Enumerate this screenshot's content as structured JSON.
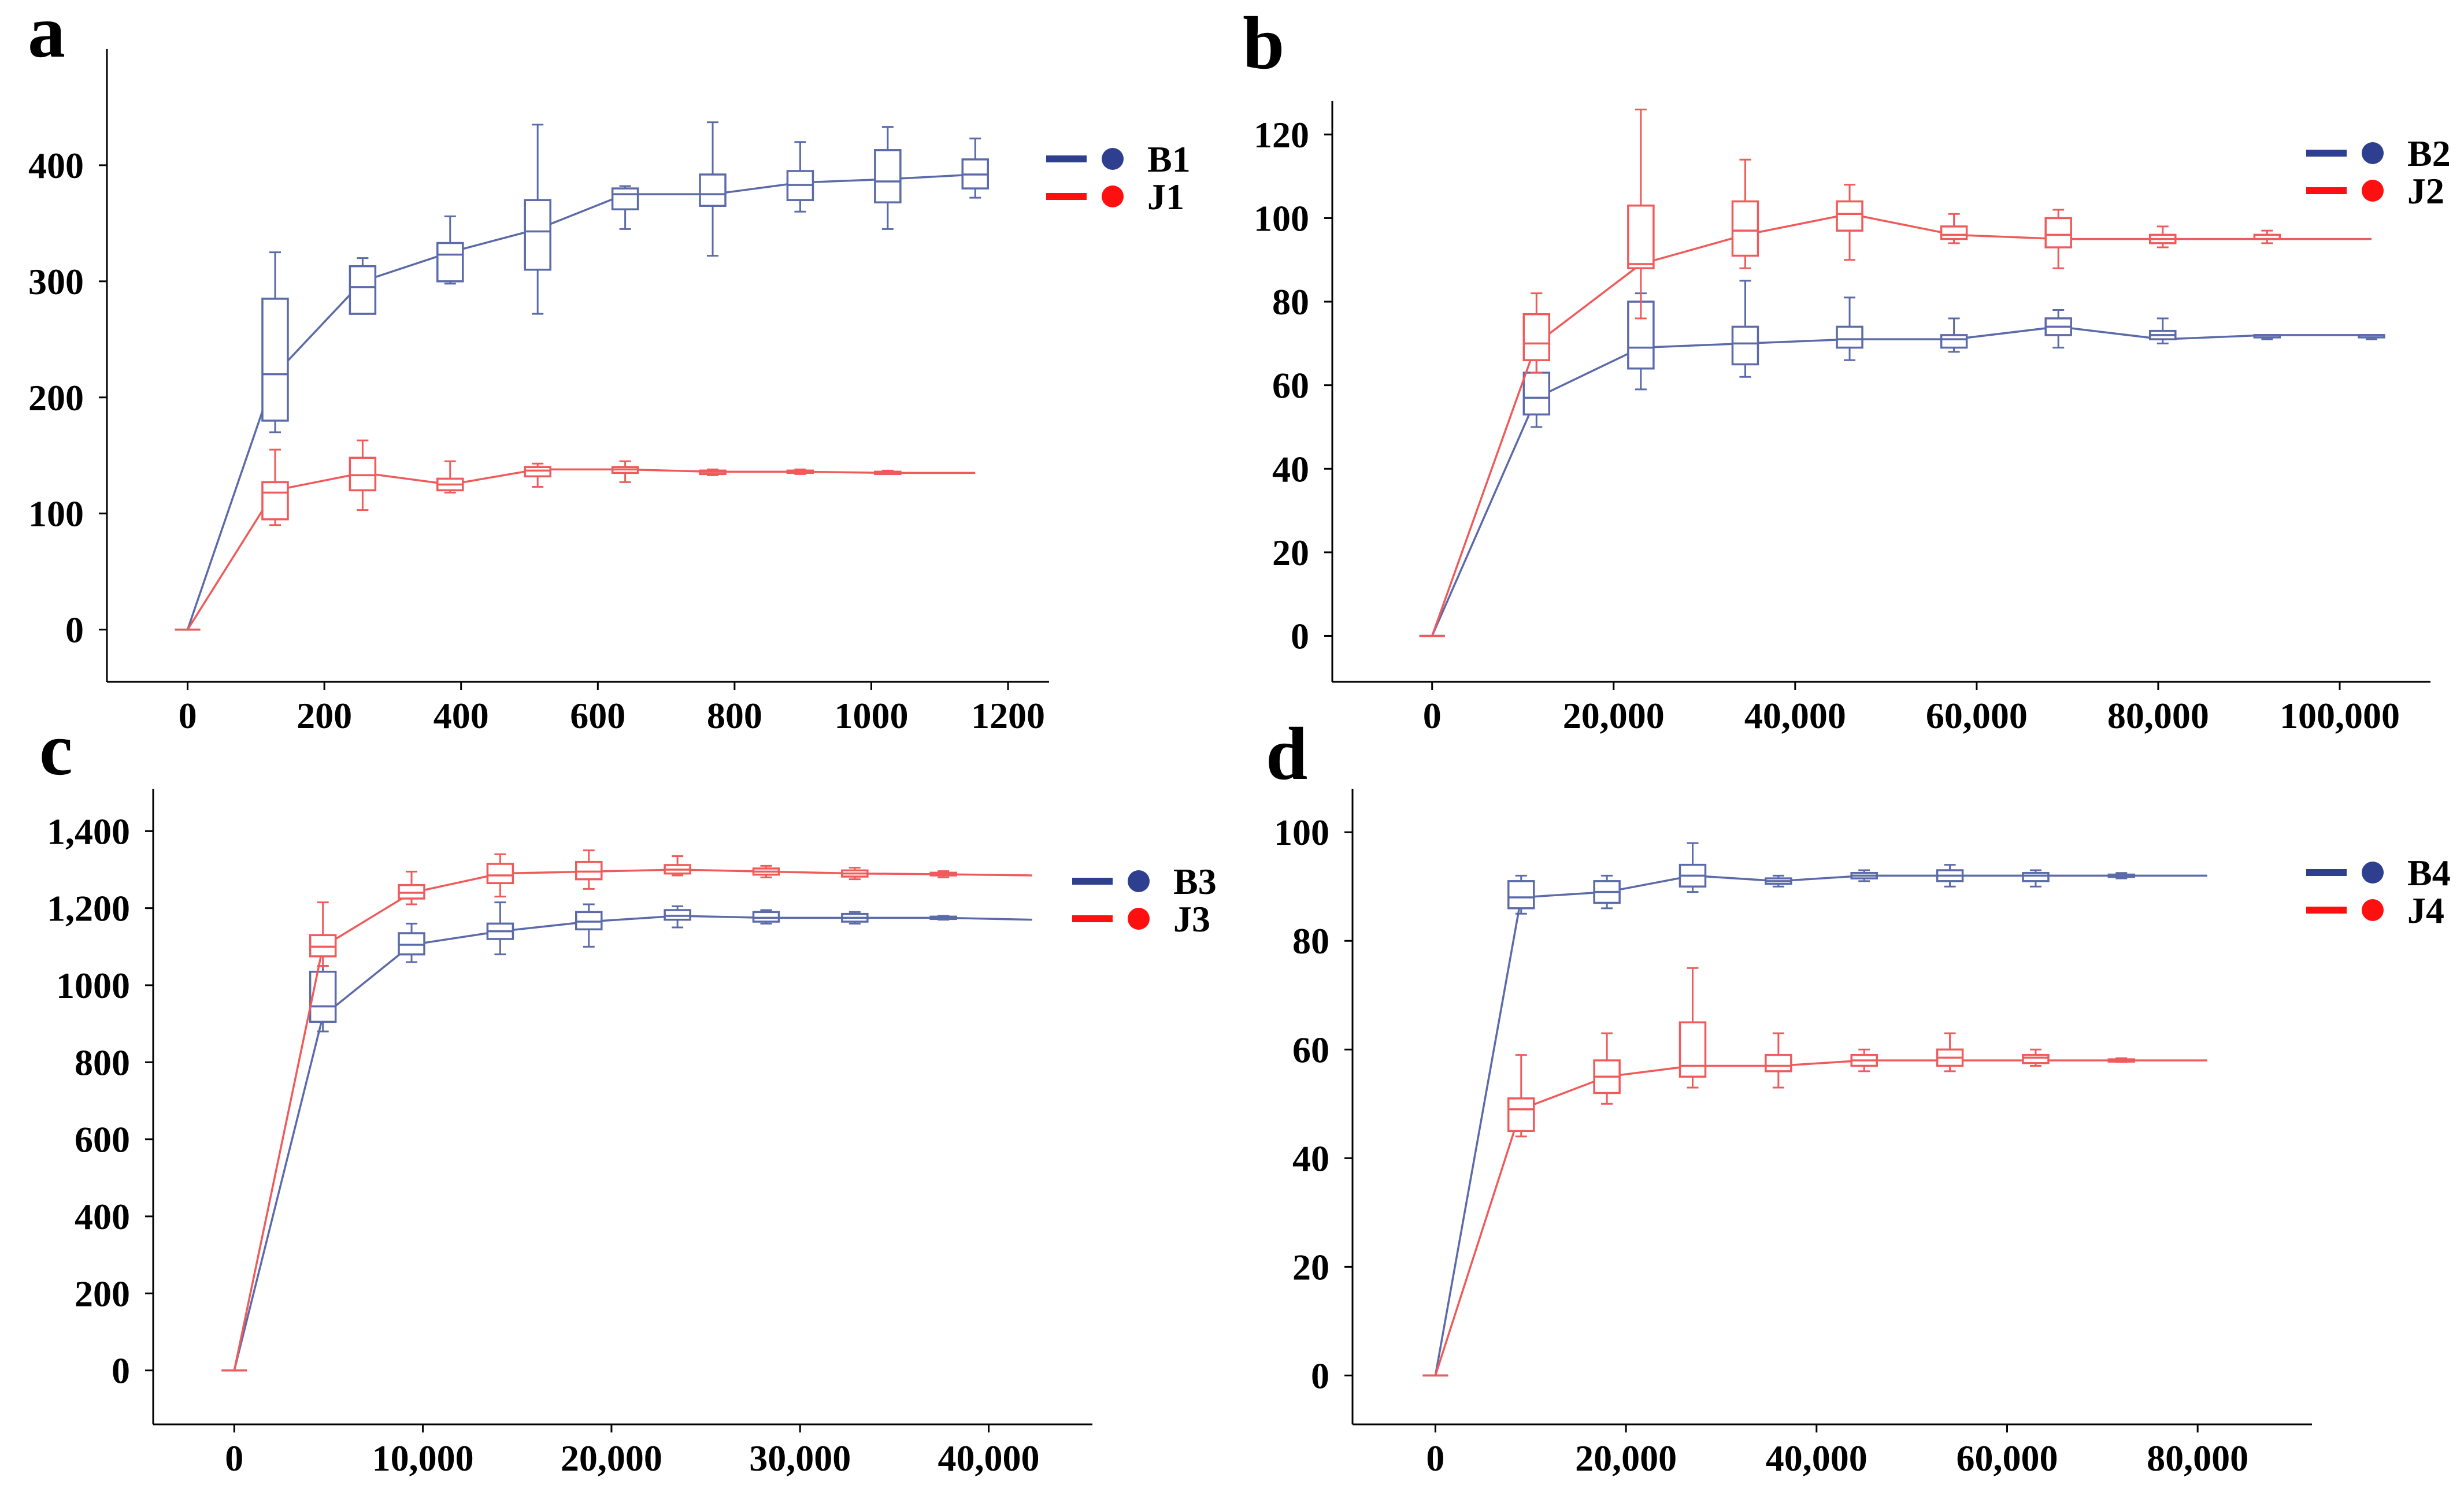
{
  "colors": {
    "B": "#5b6aa8",
    "J": "#f05a5a",
    "B_legend": "#2e3f8f",
    "J_legend": "#ff1010"
  },
  "chart_data": [
    {
      "type": "line",
      "panel": "a",
      "title": "",
      "xlabel": "",
      "ylabel": "",
      "xlim": [
        -118,
        1260
      ],
      "ylim": [
        -45,
        500
      ],
      "xticks": [
        0,
        200,
        400,
        600,
        800,
        1000,
        1200
      ],
      "xtick_labels": [
        "0",
        "200",
        "400",
        "600",
        "800",
        "1000",
        "1200"
      ],
      "yticks": [
        0,
        100,
        200,
        300,
        400
      ],
      "ytick_labels": [
        "0",
        "100",
        "200",
        "300",
        "400"
      ],
      "legend_position": "right",
      "series": [
        {
          "name": "B1",
          "color_key": "B",
          "x": [
            0,
            128,
            256,
            384,
            512,
            640,
            768,
            896,
            1024,
            1152
          ],
          "y": [
            0,
            220,
            300,
            325,
            345,
            375,
            375,
            385,
            388,
            392
          ],
          "boxes": [
            {
              "x": 128,
              "min": 170,
              "q1": 180,
              "median": 220,
              "q3": 285,
              "max": 325
            },
            {
              "x": 256,
              "min": 272,
              "q1": 272,
              "median": 295,
              "q3": 313,
              "max": 320
            },
            {
              "x": 384,
              "min": 298,
              "q1": 300,
              "median": 323,
              "q3": 333,
              "max": 356
            },
            {
              "x": 512,
              "min": 272,
              "q1": 310,
              "median": 343,
              "q3": 370,
              "max": 435
            },
            {
              "x": 640,
              "min": 345,
              "q1": 362,
              "median": 375,
              "q3": 380,
              "max": 382
            },
            {
              "x": 768,
              "min": 322,
              "q1": 365,
              "median": 375,
              "q3": 392,
              "max": 437
            },
            {
              "x": 896,
              "min": 360,
              "q1": 370,
              "median": 383,
              "q3": 395,
              "max": 420
            },
            {
              "x": 1024,
              "min": 345,
              "q1": 368,
              "median": 386,
              "q3": 413,
              "max": 433
            },
            {
              "x": 1152,
              "min": 372,
              "q1": 380,
              "median": 392,
              "q3": 405,
              "max": 423
            }
          ]
        },
        {
          "name": "J1",
          "color_key": "J",
          "x": [
            0,
            128,
            256,
            384,
            512,
            640,
            768,
            896,
            1024,
            1152
          ],
          "y": [
            0,
            120,
            135,
            125,
            138,
            138,
            136,
            136,
            135,
            135
          ],
          "boxes": [
            {
              "x": 128,
              "min": 90,
              "q1": 95,
              "median": 118,
              "q3": 127,
              "max": 155
            },
            {
              "x": 256,
              "min": 103,
              "q1": 120,
              "median": 133,
              "q3": 148,
              "max": 163
            },
            {
              "x": 384,
              "min": 118,
              "q1": 120,
              "median": 125,
              "q3": 130,
              "max": 145
            },
            {
              "x": 512,
              "min": 123,
              "q1": 132,
              "median": 137,
              "q3": 140,
              "max": 143
            },
            {
              "x": 640,
              "min": 127,
              "q1": 135,
              "median": 138,
              "q3": 140,
              "max": 145
            },
            {
              "x": 768,
              "min": 133,
              "q1": 134,
              "median": 136,
              "q3": 137,
              "max": 138
            },
            {
              "x": 896,
              "min": 134,
              "q1": 135,
              "median": 136,
              "q3": 137,
              "max": 138
            },
            {
              "x": 1024,
              "min": 134,
              "q1": 135,
              "median": 135,
              "q3": 136,
              "max": 137
            }
          ]
        }
      ]
    },
    {
      "type": "line",
      "panel": "b",
      "title": "",
      "xlabel": "",
      "ylabel": "",
      "xlim": [
        -11000,
        110000
      ],
      "ylim": [
        -11,
        128
      ],
      "xticks": [
        0,
        20000,
        40000,
        60000,
        80000,
        100000
      ],
      "xtick_labels": [
        "0",
        "20,000",
        "40,000",
        "60,000",
        "80,000",
        "100,000"
      ],
      "yticks": [
        0,
        20,
        40,
        60,
        80,
        100,
        120
      ],
      "ytick_labels": [
        "0",
        "20",
        "40",
        "60",
        "80",
        "100",
        "120"
      ],
      "legend_position": "right",
      "series": [
        {
          "name": "B2",
          "color_key": "B",
          "x": [
            0,
            11500,
            23000,
            34500,
            46000,
            57500,
            69000,
            80500,
            92000,
            103500
          ],
          "y": [
            0,
            57,
            69,
            70,
            71,
            71,
            74,
            71,
            72,
            72
          ],
          "boxes": [
            {
              "x": 11500,
              "min": 50,
              "q1": 53,
              "median": 57,
              "q3": 63,
              "max": 70
            },
            {
              "x": 23000,
              "min": 59,
              "q1": 64,
              "median": 69,
              "q3": 80,
              "max": 82
            },
            {
              "x": 34500,
              "min": 62,
              "q1": 65,
              "median": 70,
              "q3": 74,
              "max": 85
            },
            {
              "x": 46000,
              "min": 66,
              "q1": 69,
              "median": 71,
              "q3": 74,
              "max": 81
            },
            {
              "x": 57500,
              "min": 68,
              "q1": 69,
              "median": 71,
              "q3": 72,
              "max": 76
            },
            {
              "x": 69000,
              "min": 69,
              "q1": 72,
              "median": 74,
              "q3": 76,
              "max": 78
            },
            {
              "x": 80500,
              "min": 70,
              "q1": 71,
              "median": 72,
              "q3": 73,
              "max": 76
            },
            {
              "x": 92000,
              "min": 71,
              "q1": 72,
              "median": 72,
              "q3": 72,
              "max": 72
            },
            {
              "x": 103500,
              "min": 71,
              "q1": 72,
              "median": 72,
              "q3": 72,
              "max": 72
            }
          ]
        },
        {
          "name": "J2",
          "color_key": "J",
          "x": [
            0,
            11500,
            23000,
            34500,
            46000,
            57500,
            69000,
            80500,
            92000,
            103500
          ],
          "y": [
            0,
            70,
            89,
            96,
            101,
            96,
            95,
            95,
            95,
            95
          ],
          "boxes": [
            {
              "x": 11500,
              "min": 63,
              "q1": 66,
              "median": 70,
              "q3": 77,
              "max": 82
            },
            {
              "x": 23000,
              "min": 76,
              "q1": 88,
              "median": 89,
              "q3": 103,
              "max": 126
            },
            {
              "x": 34500,
              "min": 88,
              "q1": 91,
              "median": 97,
              "q3": 104,
              "max": 114
            },
            {
              "x": 46000,
              "min": 90,
              "q1": 97,
              "median": 101,
              "q3": 104,
              "max": 108
            },
            {
              "x": 57500,
              "min": 94,
              "q1": 95,
              "median": 96,
              "q3": 98,
              "max": 101
            },
            {
              "x": 69000,
              "min": 88,
              "q1": 93,
              "median": 96,
              "q3": 100,
              "max": 102
            },
            {
              "x": 80500,
              "min": 93,
              "q1": 94,
              "median": 95,
              "q3": 96,
              "max": 98
            },
            {
              "x": 92000,
              "min": 94,
              "q1": 95,
              "median": 95,
              "q3": 96,
              "max": 97
            }
          ]
        }
      ]
    },
    {
      "type": "line",
      "panel": "c",
      "title": "",
      "xlabel": "",
      "ylabel": "",
      "xlim": [
        -4300,
        45500
      ],
      "ylim": [
        -140,
        1510
      ],
      "xticks": [
        0,
        10000,
        20000,
        30000,
        40000
      ],
      "xtick_labels": [
        "0",
        "10,000",
        "20,000",
        "30,000",
        "40,000"
      ],
      "yticks": [
        0,
        200,
        400,
        600,
        800,
        1000,
        1200,
        1400
      ],
      "ytick_labels": [
        "0",
        "200",
        "400",
        "600",
        "800",
        "1000",
        "1,200",
        "1,400"
      ],
      "legend_position": "right",
      "series": [
        {
          "name": "B3",
          "color_key": "B",
          "x": [
            0,
            4700,
            9400,
            14100,
            18800,
            23500,
            28200,
            32900,
            37600,
            42300
          ],
          "y": [
            0,
            920,
            1105,
            1140,
            1165,
            1180,
            1175,
            1175,
            1175,
            1170
          ],
          "boxes": [
            {
              "x": 4700,
              "min": 880,
              "q1": 905,
              "median": 945,
              "q3": 1035,
              "max": 1050
            },
            {
              "x": 9400,
              "min": 1060,
              "q1": 1080,
              "median": 1105,
              "q3": 1135,
              "max": 1160
            },
            {
              "x": 14100,
              "min": 1080,
              "q1": 1120,
              "median": 1140,
              "q3": 1160,
              "max": 1215
            },
            {
              "x": 18800,
              "min": 1100,
              "q1": 1145,
              "median": 1165,
              "q3": 1190,
              "max": 1210
            },
            {
              "x": 23500,
              "min": 1150,
              "q1": 1170,
              "median": 1180,
              "q3": 1195,
              "max": 1205
            },
            {
              "x": 28200,
              "min": 1160,
              "q1": 1165,
              "median": 1175,
              "q3": 1190,
              "max": 1195
            },
            {
              "x": 32900,
              "min": 1160,
              "q1": 1165,
              "median": 1175,
              "q3": 1185,
              "max": 1190
            },
            {
              "x": 37600,
              "min": 1170,
              "q1": 1172,
              "median": 1175,
              "q3": 1178,
              "max": 1180
            }
          ]
        },
        {
          "name": "J3",
          "color_key": "J",
          "x": [
            0,
            4700,
            9400,
            14100,
            18800,
            23500,
            28200,
            32900,
            37600,
            42300
          ],
          "y": [
            0,
            1100,
            1240,
            1290,
            1295,
            1300,
            1295,
            1290,
            1288,
            1285
          ],
          "boxes": [
            {
              "x": 4700,
              "min": 1050,
              "q1": 1075,
              "median": 1100,
              "q3": 1130,
              "max": 1215
            },
            {
              "x": 9400,
              "min": 1210,
              "q1": 1225,
              "median": 1240,
              "q3": 1260,
              "max": 1295
            },
            {
              "x": 14100,
              "min": 1230,
              "q1": 1265,
              "median": 1285,
              "q3": 1315,
              "max": 1340
            },
            {
              "x": 18800,
              "min": 1250,
              "q1": 1275,
              "median": 1295,
              "q3": 1320,
              "max": 1350
            },
            {
              "x": 23500,
              "min": 1285,
              "q1": 1290,
              "median": 1300,
              "q3": 1312,
              "max": 1335
            },
            {
              "x": 28200,
              "min": 1280,
              "q1": 1287,
              "median": 1295,
              "q3": 1303,
              "max": 1310
            },
            {
              "x": 32900,
              "min": 1275,
              "q1": 1282,
              "median": 1290,
              "q3": 1298,
              "max": 1305
            },
            {
              "x": 37600,
              "min": 1280,
              "q1": 1285,
              "median": 1288,
              "q3": 1292,
              "max": 1296
            }
          ]
        }
      ]
    },
    {
      "type": "line",
      "panel": "d",
      "title": "",
      "xlabel": "",
      "ylabel": "",
      "xlim": [
        -8700,
        92000
      ],
      "ylim": [
        -9,
        108
      ],
      "xticks": [
        0,
        20000,
        40000,
        60000,
        80000
      ],
      "xtick_labels": [
        "0",
        "20,000",
        "40,000",
        "60,000",
        "80,000"
      ],
      "yticks": [
        0,
        20,
        40,
        60,
        80,
        100
      ],
      "ytick_labels": [
        "0",
        "20",
        "40",
        "60",
        "80",
        "100"
      ],
      "legend_position": "right",
      "series": [
        {
          "name": "B4",
          "color_key": "B",
          "x": [
            0,
            9000,
            18000,
            27000,
            36000,
            45000,
            54000,
            63000,
            72000,
            81000
          ],
          "y": [
            0,
            88,
            89,
            92,
            91,
            92,
            92,
            92,
            92,
            92
          ],
          "boxes": [
            {
              "x": 9000,
              "min": 85,
              "q1": 86,
              "median": 88,
              "q3": 91,
              "max": 92
            },
            {
              "x": 18000,
              "min": 86,
              "q1": 87,
              "median": 89,
              "q3": 91,
              "max": 92
            },
            {
              "x": 27000,
              "min": 89,
              "q1": 90,
              "median": 92,
              "q3": 94,
              "max": 98
            },
            {
              "x": 36000,
              "min": 90,
              "q1": 90.5,
              "median": 91,
              "q3": 91.5,
              "max": 92
            },
            {
              "x": 45000,
              "min": 91,
              "q1": 91.5,
              "median": 92,
              "q3": 92.5,
              "max": 93
            },
            {
              "x": 54000,
              "min": 90,
              "q1": 91,
              "median": 92,
              "q3": 93,
              "max": 94
            },
            {
              "x": 63000,
              "min": 90,
              "q1": 91,
              "median": 92,
              "q3": 92.5,
              "max": 93
            },
            {
              "x": 72000,
              "min": 91.5,
              "q1": 91.8,
              "median": 92,
              "q3": 92.2,
              "max": 92.5
            }
          ]
        },
        {
          "name": "J4",
          "color_key": "J",
          "x": [
            0,
            9000,
            18000,
            27000,
            36000,
            45000,
            54000,
            63000,
            72000,
            81000
          ],
          "y": [
            0,
            49,
            55,
            57,
            57,
            58,
            58,
            58,
            58,
            58
          ],
          "boxes": [
            {
              "x": 9000,
              "min": 44,
              "q1": 45,
              "median": 49,
              "q3": 51,
              "max": 59
            },
            {
              "x": 18000,
              "min": 50,
              "q1": 52,
              "median": 55,
              "q3": 58,
              "max": 63
            },
            {
              "x": 27000,
              "min": 53,
              "q1": 55,
              "median": 57,
              "q3": 65,
              "max": 75
            },
            {
              "x": 36000,
              "min": 53,
              "q1": 56,
              "median": 57,
              "q3": 59,
              "max": 63
            },
            {
              "x": 45000,
              "min": 56,
              "q1": 57,
              "median": 58,
              "q3": 59,
              "max": 60
            },
            {
              "x": 54000,
              "min": 56,
              "q1": 57,
              "median": 58.5,
              "q3": 60,
              "max": 63
            },
            {
              "x": 63000,
              "min": 57,
              "q1": 57.5,
              "median": 58.5,
              "q3": 59,
              "max": 60
            },
            {
              "x": 72000,
              "min": 57.7,
              "q1": 57.9,
              "median": 58,
              "q3": 58.2,
              "max": 58.4
            }
          ]
        }
      ]
    }
  ]
}
